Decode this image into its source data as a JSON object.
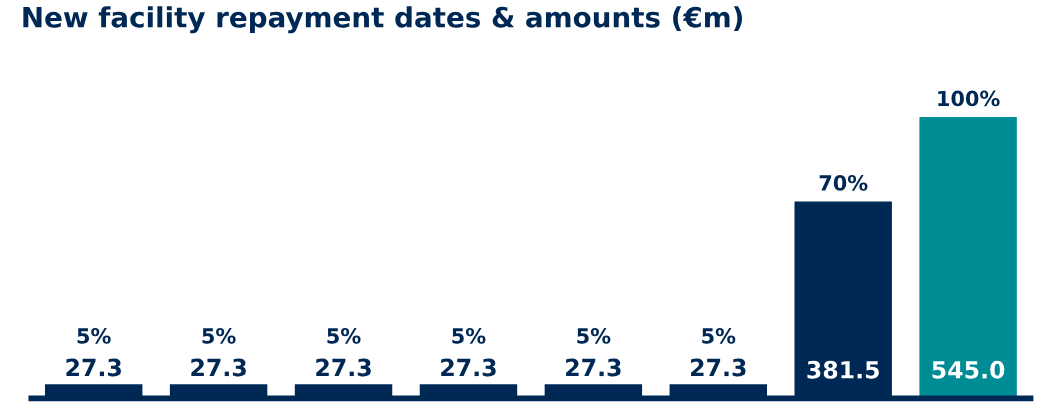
{
  "chart_data": {
    "type": "bar",
    "title": "New facility repayment dates & amounts (€m)",
    "categories": [
      null,
      null,
      null,
      null,
      null,
      null,
      null,
      null
    ],
    "values": [
      27.3,
      27.3,
      27.3,
      27.3,
      27.3,
      27.3,
      381.5,
      545.0
    ],
    "colors": [
      "#002855",
      "#002855",
      "#002855",
      "#002855",
      "#002855",
      "#002855",
      "#002855",
      "#008c95"
    ],
    "value_labels": [
      "27.3",
      "27.3",
      "27.3",
      "27.3",
      "27.3",
      "27.3",
      "381.5",
      "545.0"
    ],
    "annotations": [
      "5%",
      "5%",
      "5%",
      "5%",
      "5%",
      "5%",
      "70%",
      "100%"
    ]
  }
}
